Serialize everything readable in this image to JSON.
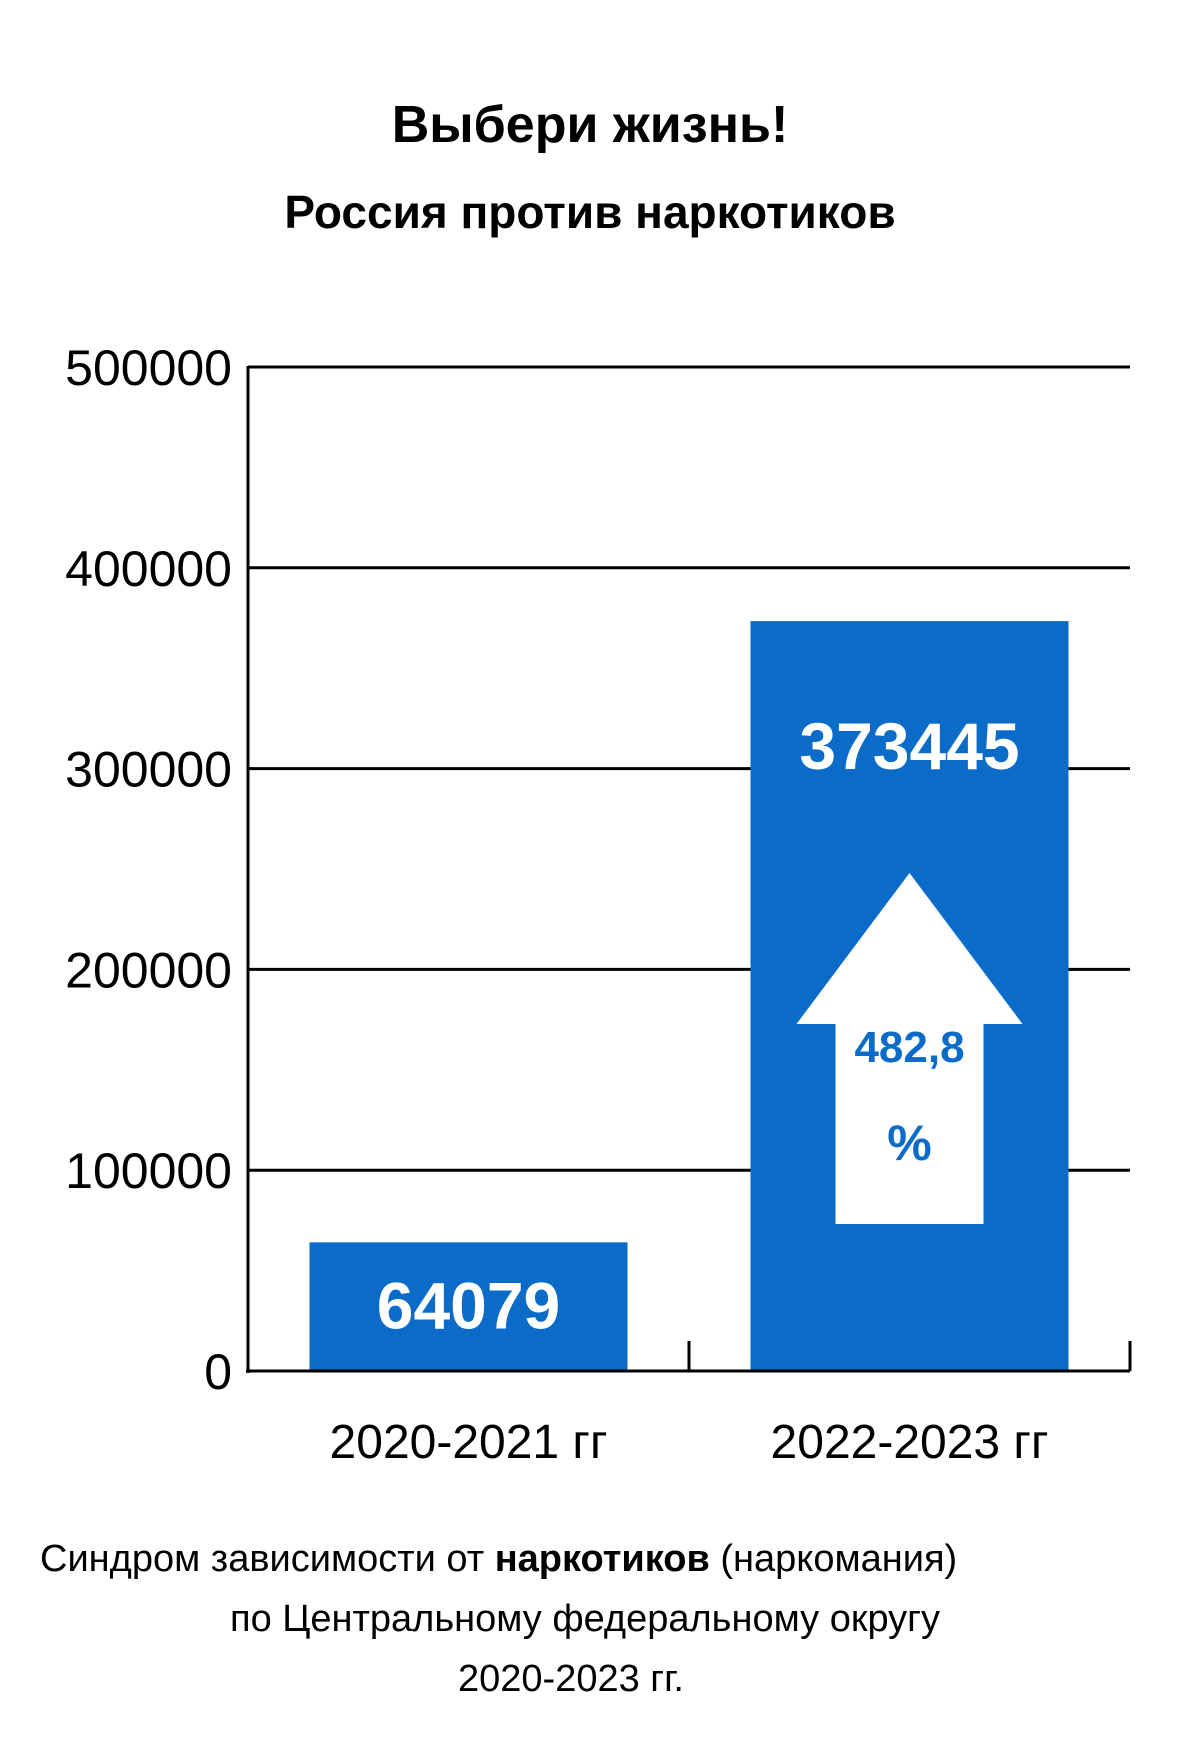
{
  "header": {
    "title": "Выбери жизнь!",
    "subtitle": "Россия против наркотиков"
  },
  "chart_data": {
    "type": "bar",
    "categories": [
      "2020-2021 гг",
      "2022-2023 гг"
    ],
    "values": [
      64079,
      373445
    ],
    "value_labels": [
      "64079",
      "373445"
    ],
    "ylim": [
      0,
      500000
    ],
    "yticks": [
      0,
      100000,
      200000,
      300000,
      400000,
      500000
    ],
    "ytick_labels": [
      "0",
      "100000",
      "200000",
      "300000",
      "400000",
      "500000"
    ],
    "grid": true,
    "bar_color": "#0a6cc8",
    "arrow": {
      "label_value": "482,8",
      "label_unit": "%"
    }
  },
  "caption": {
    "line1_pre": "Синдром зависимости  от ",
    "line1_bold": "наркотиков",
    "line1_post": " (наркомания)",
    "line2": "по Центральному федеральному округу",
    "line3": "2020-2023 гг."
  }
}
